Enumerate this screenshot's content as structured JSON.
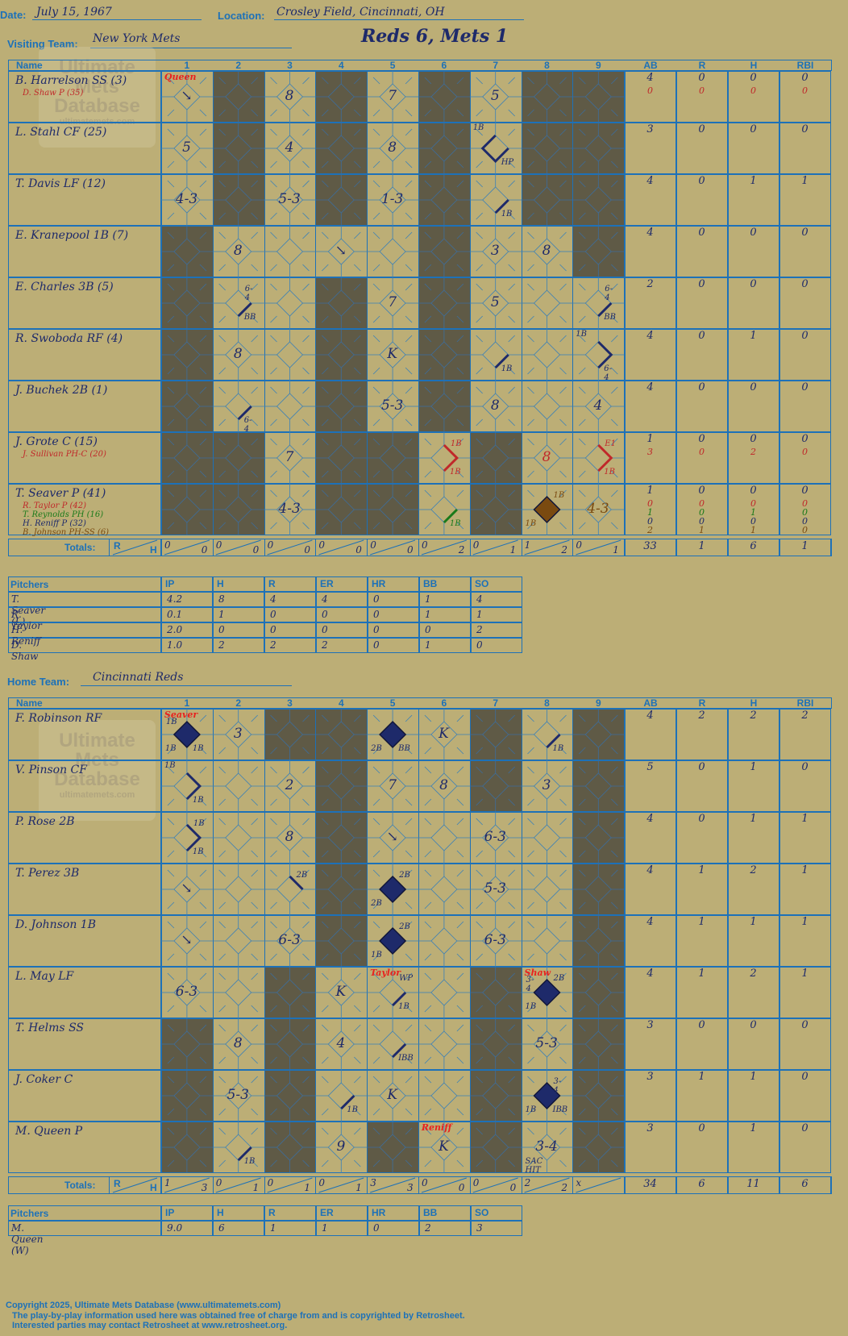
{
  "header": {
    "date_label": "Date:",
    "date": "July 15, 1967",
    "location_label": "Location:",
    "location": "Crosley Field, Cincinnati, OH",
    "visiting_label": "Visiting Team:",
    "visiting_team": "New York Mets",
    "home_label": "Home Team:",
    "home_team": "Cincinnati Reds",
    "score_title": "Reds 6, Mets 1"
  },
  "watermark": {
    "line1": "Ultimate",
    "line2": "Mets",
    "line3": "Database",
    "url": "ultimatemets.com"
  },
  "columns": {
    "name": "Name",
    "innings": [
      "1",
      "2",
      "3",
      "4",
      "5",
      "6",
      "7",
      "8",
      "9"
    ],
    "ab": "AB",
    "r": "R",
    "h": "H",
    "rbi": "RBI"
  },
  "totals_label": "Totals:",
  "rh_r": "R",
  "rh_h": "H",
  "pitch_cols": {
    "name": "Pitchers",
    "cols": [
      "IP",
      "H",
      "R",
      "ER",
      "HR",
      "BB",
      "SO"
    ]
  },
  "visitors": {
    "rows": [
      {
        "name": "B. Harrelson SS (3)",
        "subs": [
          {
            "text": "D. Shaw P (35)",
            "color": "#c0282a"
          }
        ],
        "stats": [
          [
            "4",
            "0",
            "0",
            "0"
          ],
          [
            "0",
            "0",
            "0",
            "0"
          ]
        ]
      },
      {
        "name": "L. Stahl CF (25)",
        "subs": [],
        "stats": [
          [
            "3",
            "0",
            "0",
            "0"
          ]
        ]
      },
      {
        "name": "T. Davis LF (12)",
        "subs": [],
        "stats": [
          [
            "4",
            "0",
            "1",
            "1"
          ]
        ]
      },
      {
        "name": "E. Kranepool 1B (7)",
        "subs": [],
        "stats": [
          [
            "4",
            "0",
            "0",
            "0"
          ]
        ]
      },
      {
        "name": "E. Charles 3B (5)",
        "subs": [],
        "stats": [
          [
            "2",
            "0",
            "0",
            "0"
          ]
        ]
      },
      {
        "name": "R. Swoboda RF (4)",
        "subs": [],
        "stats": [
          [
            "4",
            "0",
            "1",
            "0"
          ]
        ]
      },
      {
        "name": "J. Buchek 2B (1)",
        "subs": [],
        "stats": [
          [
            "4",
            "0",
            "0",
            "0"
          ]
        ]
      },
      {
        "name": "J. Grote C (15)",
        "subs": [
          {
            "text": "J. Sullivan PH-C (20)",
            "color": "#c0282a"
          }
        ],
        "stats": [
          [
            "1",
            "0",
            "0",
            "0"
          ],
          [
            "3",
            "0",
            "2",
            "0"
          ]
        ]
      },
      {
        "name": "T. Seaver P (41)",
        "subs": [
          {
            "text": "R. Taylor P (42)",
            "color": "#c0282a"
          },
          {
            "text": "T. Reynolds PH (16)",
            "color": "#1a7a1a"
          },
          {
            "text": "H. Reniff P (32)",
            "color": "#1e2a6a"
          },
          {
            "text": "B. Johnson PH-SS (6)",
            "color": "#7a4a10"
          }
        ],
        "stats": [
          [
            "1",
            "0",
            "0",
            "0"
          ],
          [
            "0",
            "0",
            "0",
            "0"
          ],
          [
            "1",
            "0",
            "1",
            "0"
          ],
          [
            "0",
            "0",
            "0",
            "0"
          ],
          [
            "2",
            "1",
            "1",
            "0"
          ]
        ]
      }
    ],
    "inning_rh": [
      [
        "0",
        "0"
      ],
      [
        "0",
        "0"
      ],
      [
        "0",
        "0"
      ],
      [
        "0",
        "0"
      ],
      [
        "0",
        "0"
      ],
      [
        "0",
        "2"
      ],
      [
        "0",
        "1"
      ],
      [
        "1",
        "2"
      ],
      [
        "0",
        "1"
      ]
    ],
    "totals": [
      "33",
      "1",
      "6",
      "1"
    ],
    "pitchers": [
      {
        "name": "T. Seaver (L)",
        "vals": [
          "4.2",
          "8",
          "4",
          "4",
          "0",
          "1",
          "4"
        ]
      },
      {
        "name": "R. Taylor",
        "vals": [
          "0.1",
          "1",
          "0",
          "0",
          "0",
          "1",
          "1"
        ]
      },
      {
        "name": "H. Reniff",
        "vals": [
          "2.0",
          "0",
          "0",
          "0",
          "0",
          "0",
          "2"
        ]
      },
      {
        "name": "D. Shaw",
        "vals": [
          "1.0",
          "2",
          "2",
          "2",
          "0",
          "1",
          "0"
        ]
      }
    ],
    "plays": [
      {
        "r": 0,
        "i": 0,
        "t": "↘",
        "sm": [
          {
            "p": "tl",
            "t": "Queen",
            "c": "red"
          }
        ]
      },
      {
        "r": 0,
        "i": 2,
        "t": "8"
      },
      {
        "r": 0,
        "i": 4,
        "t": "7"
      },
      {
        "r": 0,
        "i": 6,
        "t": "5"
      },
      {
        "r": 1,
        "i": 0,
        "t": "5"
      },
      {
        "r": 1,
        "i": 2,
        "t": "4"
      },
      {
        "r": 1,
        "i": 4,
        "t": "8"
      },
      {
        "r": 1,
        "i": 6,
        "path": "half3",
        "sm": [
          {
            "p": "tl",
            "t": "1B"
          },
          {
            "p": "br",
            "t": "HP"
          }
        ]
      },
      {
        "r": 2,
        "i": 0,
        "t": "4-3"
      },
      {
        "r": 2,
        "i": 2,
        "t": "5-3"
      },
      {
        "r": 2,
        "i": 4,
        "t": "1-3"
      },
      {
        "r": 2,
        "i": 6,
        "path": "single",
        "sm": [
          {
            "p": "br",
            "t": "1B"
          }
        ]
      },
      {
        "r": 3,
        "i": 1,
        "t": "8"
      },
      {
        "r": 3,
        "i": 3,
        "t": "↘"
      },
      {
        "r": 3,
        "i": 6,
        "t": "3"
      },
      {
        "r": 3,
        "i": 7,
        "t": "8"
      },
      {
        "r": 4,
        "i": 1,
        "path": "single",
        "sm": [
          {
            "p": "tr",
            "t": "6-4"
          },
          {
            "p": "br",
            "t": "BB"
          }
        ]
      },
      {
        "r": 4,
        "i": 4,
        "t": "7"
      },
      {
        "r": 4,
        "i": 6,
        "t": "5"
      },
      {
        "r": 4,
        "i": 8,
        "path": "single",
        "sm": [
          {
            "p": "tr",
            "t": "6-4"
          },
          {
            "p": "br",
            "t": "BB"
          }
        ]
      },
      {
        "r": 5,
        "i": 1,
        "t": "8"
      },
      {
        "r": 5,
        "i": 4,
        "t": "K"
      },
      {
        "r": 5,
        "i": 6,
        "path": "single",
        "sm": [
          {
            "p": "br",
            "t": "1B"
          }
        ]
      },
      {
        "r": 5,
        "i": 8,
        "path": "two",
        "sm": [
          {
            "p": "tl",
            "t": "1B"
          },
          {
            "p": "br",
            "t": "6-4"
          }
        ]
      },
      {
        "r": 6,
        "i": 1,
        "path": "single",
        "sm": [
          {
            "p": "br",
            "t": "6-4"
          }
        ]
      },
      {
        "r": 6,
        "i": 4,
        "t": "5-3"
      },
      {
        "r": 6,
        "i": 6,
        "t": "8"
      },
      {
        "r": 6,
        "i": 8,
        "t": "4"
      },
      {
        "r": 7,
        "i": 2,
        "t": "7"
      },
      {
        "r": 7,
        "i": 5,
        "path": "two",
        "color": "#c0282a",
        "sm": [
          {
            "p": "tr",
            "t": "1B",
            "c": "red2"
          },
          {
            "p": "br",
            "t": "1B",
            "c": "red2"
          }
        ]
      },
      {
        "r": 7,
        "i": 7,
        "t": "8",
        "color": "#c0282a"
      },
      {
        "r": 7,
        "i": 8,
        "path": "two",
        "color": "#c0282a",
        "sm": [
          {
            "p": "tr",
            "t": "E1",
            "c": "red2"
          },
          {
            "p": "br",
            "t": "1B",
            "c": "red2"
          }
        ]
      },
      {
        "r": 8,
        "i": 2,
        "t": "4-3"
      },
      {
        "r": 8,
        "i": 5,
        "path": "single",
        "color": "#1a7a1a",
        "sm": [
          {
            "p": "br",
            "t": "1B",
            "c": "green"
          }
        ]
      },
      {
        "r": 8,
        "i": 7,
        "fill": "#7a4a10",
        "sm": [
          {
            "p": "tr",
            "t": "1B",
            "c": "brown"
          },
          {
            "p": "bl",
            "t": "1B",
            "c": "brown"
          }
        ]
      },
      {
        "r": 8,
        "i": 8,
        "t": "4-3",
        "color": "#7a4a10"
      }
    ]
  },
  "home": {
    "rows": [
      {
        "name": "F. Robinson RF",
        "subs": [],
        "stats": [
          [
            "4",
            "2",
            "2",
            "2"
          ]
        ]
      },
      {
        "name": "V. Pinson CF",
        "subs": [],
        "stats": [
          [
            "5",
            "0",
            "1",
            "0"
          ]
        ]
      },
      {
        "name": "P. Rose 2B",
        "subs": [],
        "stats": [
          [
            "4",
            "0",
            "1",
            "1"
          ]
        ]
      },
      {
        "name": "T. Perez 3B",
        "subs": [],
        "stats": [
          [
            "4",
            "1",
            "2",
            "1"
          ]
        ]
      },
      {
        "name": "D. Johnson 1B",
        "subs": [],
        "stats": [
          [
            "4",
            "1",
            "1",
            "1"
          ]
        ]
      },
      {
        "name": "L. May LF",
        "subs": [],
        "stats": [
          [
            "4",
            "1",
            "2",
            "1"
          ]
        ]
      },
      {
        "name": "T. Helms SS",
        "subs": [],
        "stats": [
          [
            "3",
            "0",
            "0",
            "0"
          ]
        ]
      },
      {
        "name": "J. Coker C",
        "subs": [],
        "stats": [
          [
            "3",
            "1",
            "1",
            "0"
          ]
        ]
      },
      {
        "name": "M. Queen P",
        "subs": [],
        "stats": [
          [
            "3",
            "0",
            "1",
            "0"
          ]
        ]
      }
    ],
    "inning_rh": [
      [
        "1",
        "3"
      ],
      [
        "0",
        "1"
      ],
      [
        "0",
        "1"
      ],
      [
        "0",
        "1"
      ],
      [
        "3",
        "3"
      ],
      [
        "0",
        "0"
      ],
      [
        "0",
        "0"
      ],
      [
        "2",
        "2"
      ],
      [
        "x",
        ""
      ]
    ],
    "totals": [
      "34",
      "6",
      "11",
      "6"
    ],
    "pitchers": [
      {
        "name": "M. Queen (W)",
        "vals": [
          "9.0",
          "6",
          "1",
          "1",
          "0",
          "2",
          "3"
        ]
      }
    ],
    "plays": [
      {
        "r": 0,
        "i": 0,
        "fill": "#1e2a6a",
        "sm": [
          {
            "p": "tl",
            "t": "Seaver",
            "c": "red"
          },
          {
            "p": "tl2",
            "t": "1B"
          },
          {
            "p": "bl",
            "t": "1B"
          },
          {
            "p": "br",
            "t": "1B"
          }
        ]
      },
      {
        "r": 0,
        "i": 1,
        "t": "3"
      },
      {
        "r": 0,
        "i": 4,
        "fill": "#1e2a6a",
        "sm": [
          {
            "p": "bl",
            "t": "2B"
          },
          {
            "p": "br",
            "t": "BB"
          }
        ]
      },
      {
        "r": 0,
        "i": 5,
        "t": "K"
      },
      {
        "r": 0,
        "i": 7,
        "path": "single",
        "sm": [
          {
            "p": "br",
            "t": "1B"
          }
        ]
      },
      {
        "r": 1,
        "i": 0,
        "path": "two",
        "sm": [
          {
            "p": "tl",
            "t": "1B"
          },
          {
            "p": "br",
            "t": "1B"
          }
        ]
      },
      {
        "r": 1,
        "i": 2,
        "t": "2"
      },
      {
        "r": 1,
        "i": 4,
        "t": "7"
      },
      {
        "r": 1,
        "i": 5,
        "t": "8"
      },
      {
        "r": 1,
        "i": 7,
        "t": "3"
      },
      {
        "r": 2,
        "i": 0,
        "path": "two",
        "sm": [
          {
            "p": "tr",
            "t": "1B"
          },
          {
            "p": "br",
            "t": "1B"
          }
        ]
      },
      {
        "r": 2,
        "i": 2,
        "t": "8"
      },
      {
        "r": 2,
        "i": 4,
        "t": "↘"
      },
      {
        "r": 2,
        "i": 6,
        "t": "6-3"
      },
      {
        "r": 3,
        "i": 0,
        "t": "↘"
      },
      {
        "r": 3,
        "i": 2,
        "path": "half2",
        "sm": [
          {
            "p": "tr",
            "t": "2B"
          }
        ]
      },
      {
        "r": 3,
        "i": 4,
        "fill": "#1e2a6a",
        "sm": [
          {
            "p": "tr",
            "t": "2B"
          },
          {
            "p": "bl",
            "t": "2B"
          }
        ]
      },
      {
        "r": 3,
        "i": 6,
        "t": "5-3"
      },
      {
        "r": 4,
        "i": 0,
        "t": "↘"
      },
      {
        "r": 4,
        "i": 2,
        "t": "6-3"
      },
      {
        "r": 4,
        "i": 4,
        "fill": "#1e2a6a",
        "sm": [
          {
            "p": "tr",
            "t": "2B"
          },
          {
            "p": "bl",
            "t": "1B"
          }
        ]
      },
      {
        "r": 4,
        "i": 6,
        "t": "6-3"
      },
      {
        "r": 5,
        "i": 0,
        "t": "6-3"
      },
      {
        "r": 5,
        "i": 3,
        "t": "K"
      },
      {
        "r": 5,
        "i": 4,
        "path": "single",
        "sm": [
          {
            "p": "tl",
            "t": "Taylor",
            "c": "red"
          },
          {
            "p": "tr",
            "t": "WP"
          },
          {
            "p": "br",
            "t": "1B"
          }
        ]
      },
      {
        "r": 5,
        "i": 7,
        "fill": "#1e2a6a",
        "sm": [
          {
            "p": "tl",
            "t": "Shaw",
            "c": "red"
          },
          {
            "p": "tl2",
            "t": "3-4"
          },
          {
            "p": "tr",
            "t": "2B"
          },
          {
            "p": "bl",
            "t": "1B"
          }
        ]
      },
      {
        "r": 6,
        "i": 1,
        "t": "8"
      },
      {
        "r": 6,
        "i": 3,
        "t": "4"
      },
      {
        "r": 6,
        "i": 4,
        "path": "single",
        "sm": [
          {
            "p": "br",
            "t": "IBB"
          }
        ]
      },
      {
        "r": 6,
        "i": 7,
        "t": "5-3"
      },
      {
        "r": 7,
        "i": 1,
        "t": "5-3"
      },
      {
        "r": 7,
        "i": 3,
        "path": "single",
        "sm": [
          {
            "p": "br",
            "t": "1B"
          }
        ]
      },
      {
        "r": 7,
        "i": 4,
        "t": "K"
      },
      {
        "r": 7,
        "i": 7,
        "fill": "#1e2a6a",
        "sm": [
          {
            "p": "tr",
            "t": "3-4"
          },
          {
            "p": "bl",
            "t": "1B"
          },
          {
            "p": "br",
            "t": "IBB"
          }
        ]
      },
      {
        "r": 8,
        "i": 1,
        "path": "single",
        "sm": [
          {
            "p": "br",
            "t": "1B"
          }
        ]
      },
      {
        "r": 8,
        "i": 3,
        "t": "9"
      },
      {
        "r": 8,
        "i": 5,
        "t": "K",
        "sm": [
          {
            "p": "tl",
            "t": "Reniff",
            "c": "red"
          }
        ]
      },
      {
        "r": 8,
        "i": 7,
        "t": "3-4",
        "sm": [
          {
            "p": "bl",
            "t": "SAC HIT"
          }
        ]
      }
    ]
  },
  "footer": {
    "copyright": "Copyright 2025, Ultimate Mets Database (www.ultimatemets.com)",
    "line2": "The play-by-play information used here was obtained free of charge from and is copyrighted by Retrosheet.",
    "line3": "Interested parties may contact Retrosheet at www.retrosheet.org."
  }
}
